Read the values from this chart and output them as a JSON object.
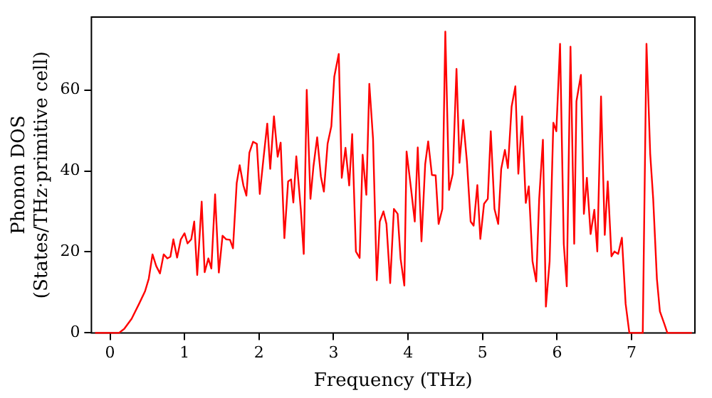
{
  "chart_data": {
    "type": "line",
    "xlabel": "Frequency (THz)",
    "ylabel": "Phonon DOS\n(States/THz·primitive cell)",
    "xlim": [
      -0.25,
      7.85
    ],
    "ylim": [
      0,
      78
    ],
    "xticks": [
      0,
      1,
      2,
      3,
      4,
      5,
      6,
      7
    ],
    "yticks": [
      0,
      20,
      40,
      60
    ],
    "grid": false,
    "legend": false,
    "marker": "none",
    "line_style": "solid",
    "x": [
      -0.2,
      0.12,
      0.19,
      0.29,
      0.39,
      0.47,
      0.52,
      0.57,
      0.62,
      0.67,
      0.72,
      0.77,
      0.81,
      0.85,
      0.9,
      0.95,
      1.0,
      1.04,
      1.09,
      1.13,
      1.17,
      1.23,
      1.27,
      1.32,
      1.36,
      1.41,
      1.46,
      1.51,
      1.56,
      1.61,
      1.65,
      1.7,
      1.74,
      1.79,
      1.83,
      1.87,
      1.92,
      1.97,
      2.01,
      2.06,
      2.11,
      2.15,
      2.2,
      2.25,
      2.29,
      2.34,
      2.39,
      2.43,
      2.46,
      2.5,
      2.56,
      2.6,
      2.64,
      2.69,
      2.73,
      2.78,
      2.83,
      2.87,
      2.92,
      2.97,
      3.01,
      3.07,
      3.11,
      3.16,
      3.21,
      3.25,
      3.3,
      3.35,
      3.39,
      3.44,
      3.48,
      3.53,
      3.58,
      3.62,
      3.67,
      3.71,
      3.76,
      3.81,
      3.86,
      3.9,
      3.95,
      3.98,
      4.04,
      4.09,
      4.13,
      4.18,
      4.23,
      4.27,
      4.32,
      4.37,
      4.41,
      4.46,
      4.5,
      4.55,
      4.6,
      4.65,
      4.69,
      4.74,
      4.79,
      4.84,
      4.88,
      4.93,
      4.97,
      5.02,
      5.07,
      5.11,
      5.16,
      5.21,
      5.25,
      5.3,
      5.34,
      5.39,
      5.44,
      5.48,
      5.53,
      5.58,
      5.62,
      5.67,
      5.72,
      5.76,
      5.81,
      5.85,
      5.9,
      5.95,
      5.99,
      6.04,
      6.09,
      6.13,
      6.18,
      6.23,
      6.26,
      6.32,
      6.36,
      6.4,
      6.45,
      6.5,
      6.54,
      6.59,
      6.64,
      6.68,
      6.73,
      6.77,
      6.82,
      6.87,
      6.92,
      6.97,
      7.15,
      7.2,
      7.25,
      7.29,
      7.34,
      7.38,
      7.44,
      7.48,
      7.81
    ],
    "series": [
      {
        "color": "#ff0000",
        "values": [
          0,
          0,
          1,
          3.5,
          7.2,
          10.3,
          13.4,
          19.4,
          16.5,
          14.7,
          19.4,
          18.4,
          18.8,
          23.1,
          18.6,
          23.1,
          24.6,
          22.1,
          23.1,
          27.5,
          14.3,
          32.4,
          15,
          18.4,
          15.9,
          34.2,
          14.9,
          24,
          23.1,
          23,
          20.9,
          37,
          41.4,
          36.4,
          33.9,
          44.5,
          47.2,
          46.7,
          34.3,
          43.2,
          51.7,
          40.5,
          53.5,
          43.5,
          47,
          23.4,
          37.4,
          37.9,
          32.2,
          43.6,
          30.6,
          19.5,
          60,
          33.1,
          41.1,
          48.3,
          38.6,
          34.9,
          46.7,
          51,
          63.3,
          68.9,
          38.3,
          45.7,
          36.4,
          49.1,
          20.1,
          18.5,
          44,
          34.1,
          61.5,
          47.9,
          13,
          27.5,
          30,
          26.9,
          12.3,
          30.6,
          29.4,
          18.3,
          11.7,
          44.8,
          35.6,
          27.5,
          45.8,
          22.6,
          41.7,
          47.3,
          39,
          38.9,
          26.9,
          30.6,
          74.4,
          35.3,
          39.3,
          65.2,
          42,
          52.6,
          42.3,
          27.5,
          26.5,
          36.5,
          23.2,
          31.9,
          33.1,
          49.8,
          30.6,
          26.9,
          40.5,
          45.2,
          40.7,
          55.9,
          60.9,
          39.3,
          53.5,
          32.1,
          36.2,
          17.7,
          12.7,
          33.1,
          47.7,
          6.5,
          17.7,
          51.9,
          49.8,
          71.4,
          22,
          11.5,
          70.7,
          22,
          57.2,
          63.7,
          29.4,
          38.3,
          24.4,
          30.4,
          20.1,
          58.4,
          24.2,
          37.4,
          18.9,
          20.1,
          19.5,
          23.5,
          7.2,
          0,
          0,
          71.4,
          44.2,
          33.1,
          13.3,
          5.3,
          2.2,
          0,
          0
        ]
      }
    ]
  }
}
